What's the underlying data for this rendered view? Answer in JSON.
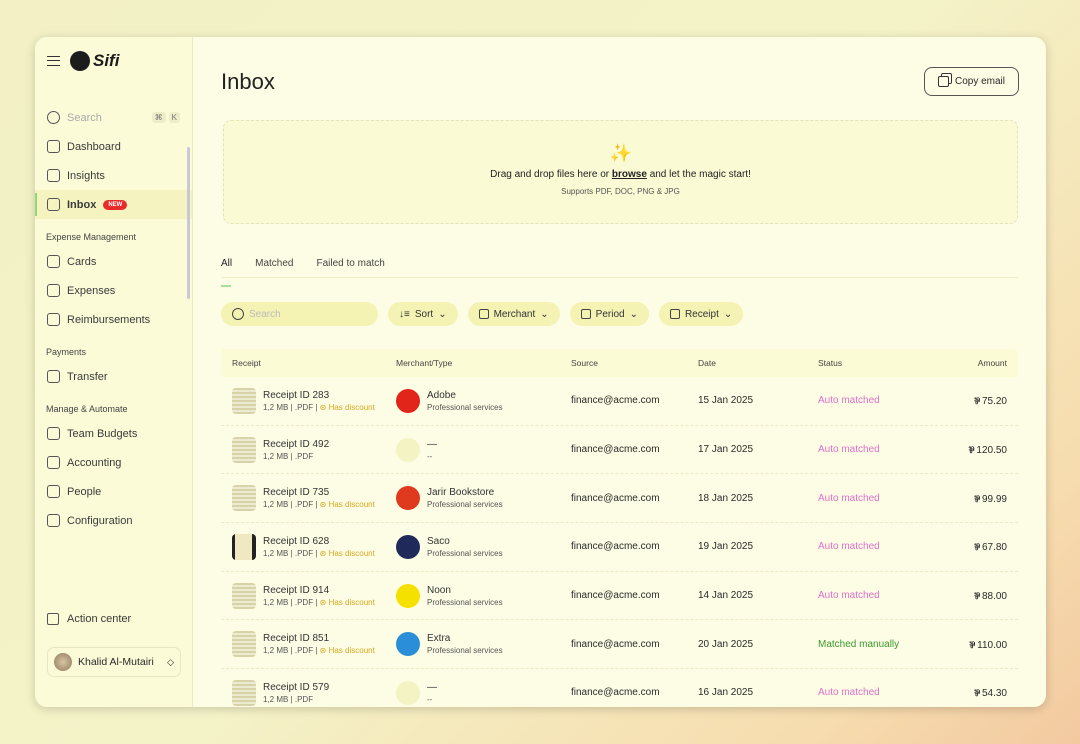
{
  "brand": "Sifi",
  "sidebar": {
    "search_placeholder": "Search",
    "shortcut": [
      "⌘",
      "K"
    ],
    "items": [
      {
        "label": "Dashboard",
        "icon": "dashboard-icon"
      },
      {
        "label": "Insights",
        "icon": "chart-icon"
      },
      {
        "label": "Inbox",
        "icon": "inbox-icon",
        "badge": "NEW",
        "active": true
      }
    ],
    "sections": [
      {
        "title": "Expense Management",
        "items": [
          {
            "label": "Cards"
          },
          {
            "label": "Expenses"
          },
          {
            "label": "Reimbursements"
          }
        ]
      },
      {
        "title": "Payments",
        "items": [
          {
            "label": "Transfer"
          }
        ]
      },
      {
        "title": "Manage & Automate",
        "items": [
          {
            "label": "Team Budgets"
          },
          {
            "label": "Accounting"
          },
          {
            "label": "People"
          },
          {
            "label": "Configuration"
          }
        ]
      }
    ],
    "action_center": "Action center",
    "user": "Khalid Al-Mutairi"
  },
  "header": {
    "title": "Inbox",
    "copy_email": "Copy email"
  },
  "dropzone": {
    "text_before": "Drag and drop files here or",
    "link": "browse",
    "text_after": "and let the magic start!",
    "supports": "Supports PDF, DOC, PNG & JPG"
  },
  "tabs": [
    "All",
    "Matched",
    "Failed to match"
  ],
  "filters": {
    "search_placeholder": "Search",
    "sort": "Sort",
    "merchant": "Merchant",
    "period": "Period",
    "receipt": "Receipt"
  },
  "table": {
    "columns": [
      "Receipt",
      "Merchant/Type",
      "Source",
      "Date",
      "Status",
      "Amount"
    ],
    "currency_icon": "saudi-riyal-icon",
    "rows": [
      {
        "receipt": "Receipt ID 283",
        "meta": "1,2 MB | .PDF",
        "discount": "Has discount",
        "merchant": "Adobe",
        "type": "Professional services",
        "logo": "#e1251b",
        "source": "finance@acme.com",
        "date": "15 Jan 2025",
        "status": "Auto matched",
        "amount": "75.20"
      },
      {
        "receipt": "Receipt ID 492",
        "meta": "1,2 MB | .PDF",
        "discount": "",
        "merchant": "—",
        "type": "--",
        "logo": "",
        "source": "finance@acme.com",
        "date": "17 Jan 2025",
        "status": "Auto matched",
        "amount": "120.50"
      },
      {
        "receipt": "Receipt ID 735",
        "meta": "1,2 MB | .PDF",
        "discount": "Has discount",
        "merchant": "Jarir Bookstore",
        "type": "Professional services",
        "logo": "#e03a1e",
        "source": "finance@acme.com",
        "date": "18 Jan 2025",
        "status": "Auto matched",
        "amount": "99.99"
      },
      {
        "receipt": "Receipt ID 628",
        "meta": "1,2 MB | .PDF",
        "discount": "Has discount",
        "merchant": "Saco",
        "type": "Professional services",
        "logo": "#1f2a5a",
        "source": "finance@acme.com",
        "date": "19 Jan 2025",
        "status": "Auto matched",
        "amount": "67.80"
      },
      {
        "receipt": "Receipt ID 914",
        "meta": "1,2 MB | .PDF",
        "discount": "Has discount",
        "merchant": "Noon",
        "type": "Professional services",
        "logo": "#f5e100",
        "source": "finance@acme.com",
        "date": "14 Jan 2025",
        "status": "Auto matched",
        "amount": "88.00"
      },
      {
        "receipt": "Receipt ID 851",
        "meta": "1,2 MB | .PDF",
        "discount": "Has discount",
        "merchant": "Extra",
        "type": "Professional services",
        "logo": "#2a8fd8",
        "source": "finance@acme.com",
        "date": "20 Jan 2025",
        "status": "Matched manually",
        "amount": "110.00"
      },
      {
        "receipt": "Receipt ID 579",
        "meta": "1,2 MB | .PDF",
        "discount": "",
        "merchant": "—",
        "type": "--",
        "logo": "",
        "source": "finance@acme.com",
        "date": "16 Jan 2025",
        "status": "Auto matched",
        "amount": "54.30"
      }
    ]
  }
}
